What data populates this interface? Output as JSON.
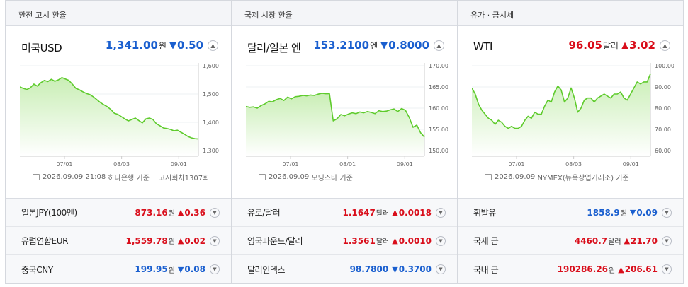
{
  "panels": [
    {
      "header": "환전 고시 환율",
      "main": {
        "title": "미국USD",
        "value": "1,341.00",
        "unit": "원",
        "dir": "down",
        "change": "0.50"
      },
      "source": {
        "date": "2026.09.09 21:08",
        "provider": "하나은행 기준",
        "extra": "고시회차1307회"
      },
      "rows": [
        {
          "label": "일본JPY(100엔)",
          "value": "873.16",
          "unit": "원",
          "dir": "up",
          "change": "0.36"
        },
        {
          "label": "유럽연합EUR",
          "value": "1,559.78",
          "unit": "원",
          "dir": "up",
          "change": "0.02"
        },
        {
          "label": "중국CNY",
          "value": "199.95",
          "unit": "원",
          "dir": "down",
          "change": "0.08"
        }
      ]
    },
    {
      "header": "국제 시장 환율",
      "main": {
        "title": "달러/일본 엔",
        "value": "153.2100",
        "unit": "엔",
        "dir": "down",
        "change": "0.8000"
      },
      "source": {
        "date": "2026.09.09",
        "provider": "모닝스타 기준",
        "extra": ""
      },
      "rows": [
        {
          "label": "유로/달러",
          "value": "1.1647",
          "unit": "달러",
          "dir": "up",
          "change": "0.0018"
        },
        {
          "label": "영국파운드/달러",
          "value": "1.3561",
          "unit": "달러",
          "dir": "up",
          "change": "0.0010"
        },
        {
          "label": "달러인덱스",
          "value": "98.7800",
          "unit": "",
          "dir": "down",
          "change": "0.3700"
        }
      ]
    },
    {
      "header": "유가 · 금시세",
      "main": {
        "title": "WTI",
        "value": "96.05",
        "unit": "달러",
        "dir": "up",
        "change": "3.02"
      },
      "source": {
        "date": "2026.09.09",
        "provider": "NYMEX(뉴욕상업거래소) 기준",
        "extra": ""
      },
      "rows": [
        {
          "label": "휘발유",
          "value": "1858.9",
          "unit": "원",
          "dir": "down",
          "change": "0.09"
        },
        {
          "label": "국제 금",
          "value": "4460.7",
          "unit": "달러",
          "dir": "up",
          "change": "21.70"
        },
        {
          "label": "국내 금",
          "value": "190286.26",
          "unit": "원",
          "dir": "up",
          "change": "206.61"
        }
      ]
    }
  ],
  "colors": {
    "up": "#d90e1b",
    "down": "#1a5fcf",
    "line": "#5ecb2c",
    "fill_top": "#c9eeb5",
    "fill_bottom": "#ffffff"
  },
  "icons": {
    "up": "▲",
    "down": "▼",
    "chevron": "chevron-down-icon",
    "source": "document-icon"
  },
  "chart_data": [
    {
      "type": "area",
      "xticks": [
        "07/01",
        "08/03",
        "09/01"
      ],
      "ylim": [
        1300,
        1600
      ],
      "yticks": [
        "1,600",
        "1,500",
        "1,400",
        "1,300"
      ],
      "values": [
        1525,
        1520,
        1516,
        1522,
        1535,
        1528,
        1540,
        1548,
        1544,
        1552,
        1545,
        1550,
        1558,
        1553,
        1548,
        1535,
        1520,
        1515,
        1508,
        1502,
        1498,
        1490,
        1480,
        1470,
        1462,
        1455,
        1445,
        1432,
        1428,
        1420,
        1412,
        1405,
        1410,
        1415,
        1406,
        1398,
        1412,
        1415,
        1410,
        1395,
        1388,
        1380,
        1378,
        1375,
        1370,
        1372,
        1365,
        1358,
        1350,
        1345,
        1342,
        1341
      ]
    },
    {
      "type": "area",
      "xticks": [
        "07/01",
        "08/01",
        "09/01"
      ],
      "ylim": [
        150,
        170
      ],
      "yticks": [
        "170.00",
        "165.00",
        "160.00",
        "155.00",
        "150.00"
      ],
      "values": [
        160.4,
        160.2,
        160.3,
        160.0,
        160.6,
        161.0,
        161.6,
        161.5,
        162.0,
        162.3,
        161.8,
        162.6,
        162.2,
        162.7,
        162.8,
        163.0,
        162.9,
        163.1,
        163.0,
        163.3,
        163.5,
        163.4,
        163.4,
        157.0,
        157.5,
        158.5,
        158.2,
        158.6,
        158.9,
        158.7,
        159.1,
        158.9,
        159.2,
        159.0,
        158.7,
        159.4,
        159.2,
        159.3,
        159.6,
        159.8,
        159.2,
        159.9,
        159.5,
        157.8,
        155.5,
        156.0,
        154.2,
        153.2
      ]
    },
    {
      "type": "area",
      "xticks": [
        "07/01",
        "08/03",
        "09/01"
      ],
      "ylim": [
        58,
        100
      ],
      "yticks": [
        "100.00",
        "90.00",
        "80.00",
        "70.00",
        "60.00"
      ],
      "values": [
        89,
        86,
        81,
        78,
        76,
        74,
        73,
        71,
        73,
        72,
        70,
        69,
        70,
        69,
        69,
        70,
        73,
        75,
        74,
        77,
        76,
        76,
        80,
        83,
        82,
        87,
        90,
        88,
        82,
        84,
        89,
        84,
        77,
        79,
        83,
        84,
        84,
        82,
        84,
        85,
        86,
        85,
        84,
        86,
        86,
        87,
        84,
        83,
        86,
        89,
        92,
        91,
        92,
        92,
        96
      ]
    }
  ]
}
